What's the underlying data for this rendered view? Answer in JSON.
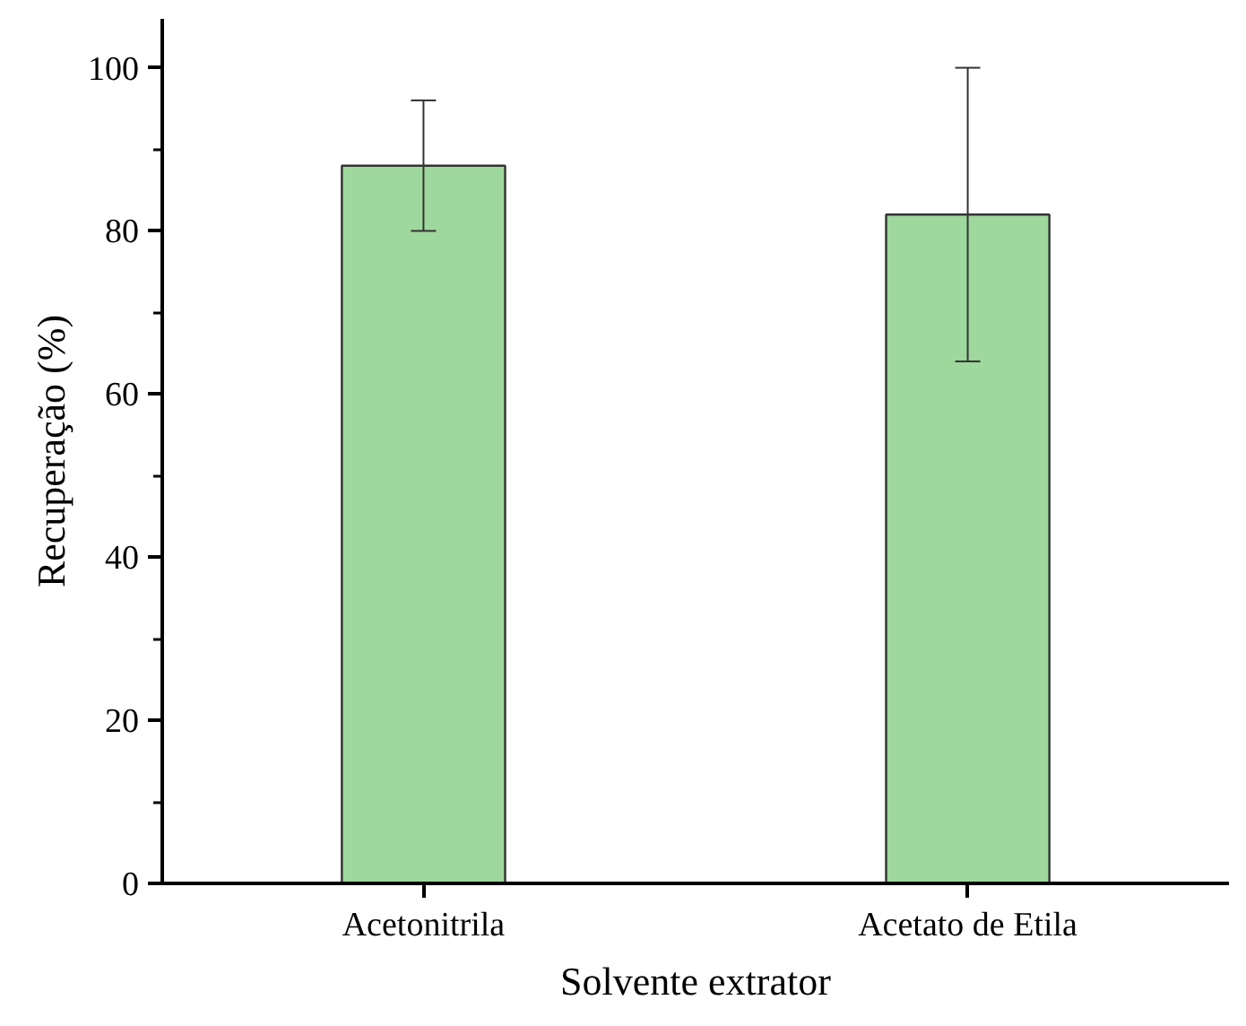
{
  "chart_data": {
    "type": "bar",
    "xlabel": "Solvente extrator",
    "ylabel": "Recuperação (%)",
    "categories": [
      "Acetonitrila",
      "Acetato de Etila"
    ],
    "values": [
      88,
      82
    ],
    "errors": [
      8,
      18
    ],
    "color": "#9fd89d",
    "ylim": [
      0,
      106
    ],
    "yticks": [
      0,
      20,
      40,
      60,
      80,
      100
    ],
    "grid": false
  }
}
